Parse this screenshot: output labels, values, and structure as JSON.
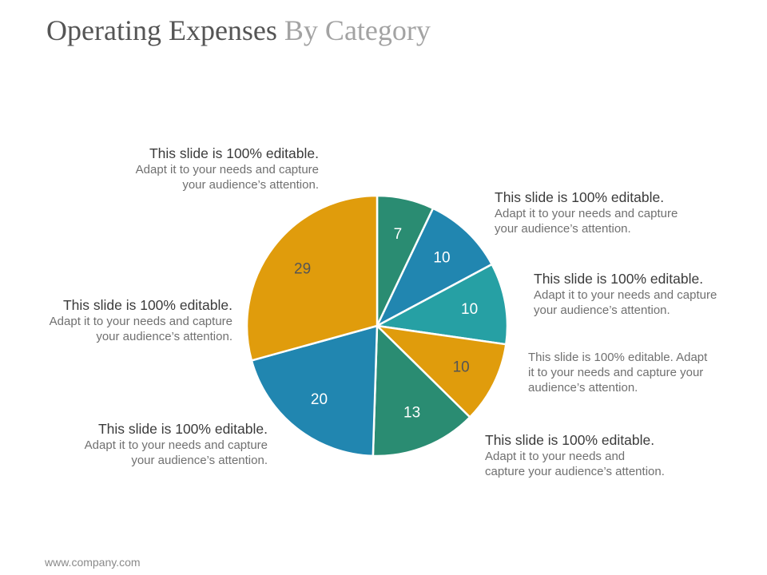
{
  "slide": {
    "title_part1": "Operating Expenses",
    "title_part2": "By Category",
    "footer": "www.company.com"
  },
  "colors": {
    "dark_green": "#2a8c72",
    "blue": "#2186b0",
    "teal": "#26a0a4",
    "gold": "#e09c0c",
    "title_dark": "#555555",
    "title_light": "#a3a3a3"
  },
  "chart_data": {
    "type": "pie",
    "title": "",
    "values": [
      7,
      10,
      10,
      10,
      13,
      20,
      29
    ],
    "labels": [
      "7",
      "10",
      "10",
      "10",
      "13",
      "20",
      "29"
    ],
    "colors": [
      "#2a8c72",
      "#2186b0",
      "#26a0a4",
      "#e09c0c",
      "#2a8c72",
      "#2186b0",
      "#e09c0c"
    ],
    "start_angle": "top (12 o'clock)",
    "direction": "clockwise",
    "label_colors": [
      "#ffffff",
      "#ffffff",
      "#ffffff",
      "#555555",
      "#ffffff",
      "#ffffff",
      "#555555"
    ]
  },
  "callouts": [
    {
      "head": "This slide is 100% editable.",
      "body_lines": [
        "Adapt it to your needs and capture",
        "your audience’s attention."
      ]
    },
    {
      "head": "This slide is 100% editable.",
      "body_lines": [
        "Adapt it to your needs and capture",
        "your audience’s attention."
      ]
    },
    {
      "head": "This slide is 100% editable.",
      "body_lines": [
        "Adapt it to your needs and capture",
        "your audience’s attention."
      ]
    },
    {
      "head": "This slide is 100% editable. Adapt",
      "body_lines": [
        "it to your needs and capture your",
        "audience’s attention."
      ]
    },
    {
      "head": "This slide is 100% editable.",
      "body_lines": [
        "Adapt it to your needs and",
        "capture your audience’s attention."
      ]
    },
    {
      "head": "This slide is 100% editable.",
      "body_lines": [
        "Adapt it to your needs and capture",
        "your audience’s attention."
      ]
    },
    {
      "head": "This slide is 100% editable.",
      "body_lines": [
        "Adapt it to your needs and capture",
        "your audience’s attention."
      ]
    }
  ]
}
